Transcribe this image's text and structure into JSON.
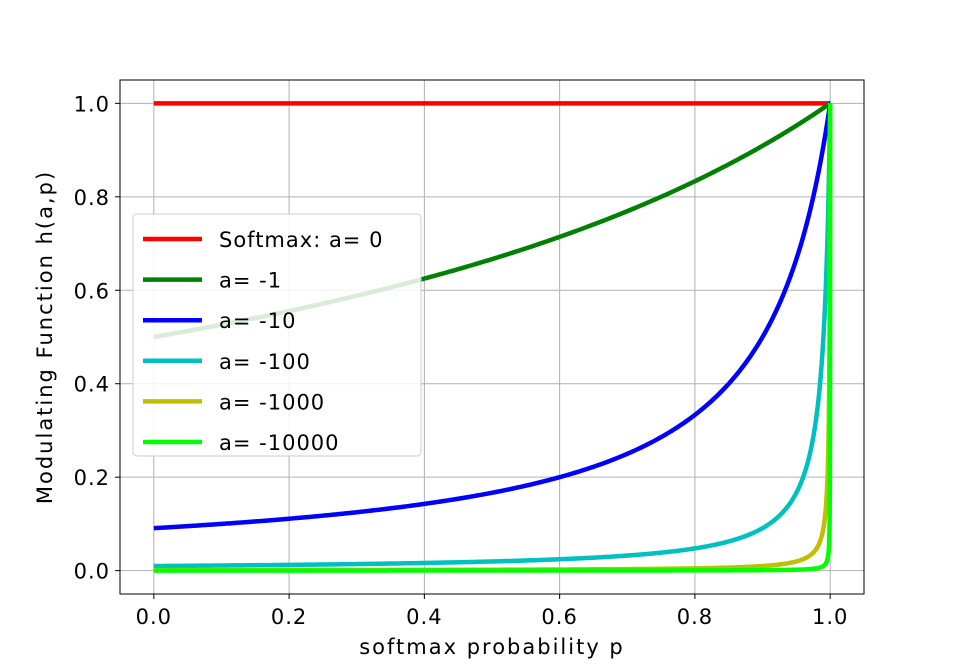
{
  "chart_data": {
    "type": "line",
    "title": "",
    "xlabel": "softmax probability p",
    "ylabel": "Modulating Function h(a,p)",
    "xlim": [
      -0.05,
      1.05
    ],
    "ylim": [
      -0.05,
      1.05
    ],
    "xticks": [
      0.0,
      0.2,
      0.4,
      0.6,
      0.8,
      1.0
    ],
    "yticks": [
      0.0,
      0.2,
      0.4,
      0.6,
      0.8,
      1.0
    ],
    "xtick_labels": [
      "0.0",
      "0.2",
      "0.4",
      "0.6",
      "0.8",
      "1.0"
    ],
    "ytick_labels": [
      "0.0",
      "0.2",
      "0.4",
      "0.6",
      "0.8",
      "1.0"
    ],
    "grid": true,
    "legend_position": "center-left",
    "series": [
      {
        "name": "Softmax: a= 0",
        "a": 0,
        "color": "#ff0000",
        "x": [
          0.0,
          0.5,
          1.0
        ],
        "values": [
          1.0,
          1.0,
          1.0
        ]
      },
      {
        "name": "a= -1",
        "a": -1,
        "color": "#008000",
        "x": [
          0.0,
          0.2,
          0.4,
          0.6,
          0.8,
          1.0
        ],
        "values": [
          0.5,
          0.556,
          0.625,
          0.714,
          0.833,
          1.0
        ]
      },
      {
        "name": "a= -10",
        "a": -10,
        "color": "#0000ff",
        "x": [
          0.0,
          0.2,
          0.4,
          0.6,
          0.8,
          0.9,
          0.95,
          1.0
        ],
        "values": [
          0.091,
          0.111,
          0.143,
          0.2,
          0.333,
          0.5,
          0.667,
          1.0
        ]
      },
      {
        "name": "a= -100",
        "a": -100,
        "color": "#00bfbf",
        "x": [
          0.0,
          0.2,
          0.4,
          0.6,
          0.8,
          0.9,
          0.95,
          0.99,
          1.0
        ],
        "values": [
          0.0099,
          0.0123,
          0.0164,
          0.0244,
          0.0476,
          0.0909,
          0.1667,
          0.5,
          1.0
        ]
      },
      {
        "name": "a= -1000",
        "a": -1000,
        "color": "#bfbf00",
        "x": [
          0.0,
          0.5,
          0.9,
          0.99,
          0.999,
          1.0
        ],
        "values": [
          0.001,
          0.002,
          0.0099,
          0.0909,
          0.5,
          1.0
        ]
      },
      {
        "name": "a= -10000",
        "a": -10000,
        "color": "#00ff00",
        "x": [
          0.0,
          0.9,
          0.999,
          0.9999,
          1.0
        ],
        "values": [
          0.0001,
          0.001,
          0.0909,
          0.5,
          1.0
        ]
      }
    ]
  }
}
